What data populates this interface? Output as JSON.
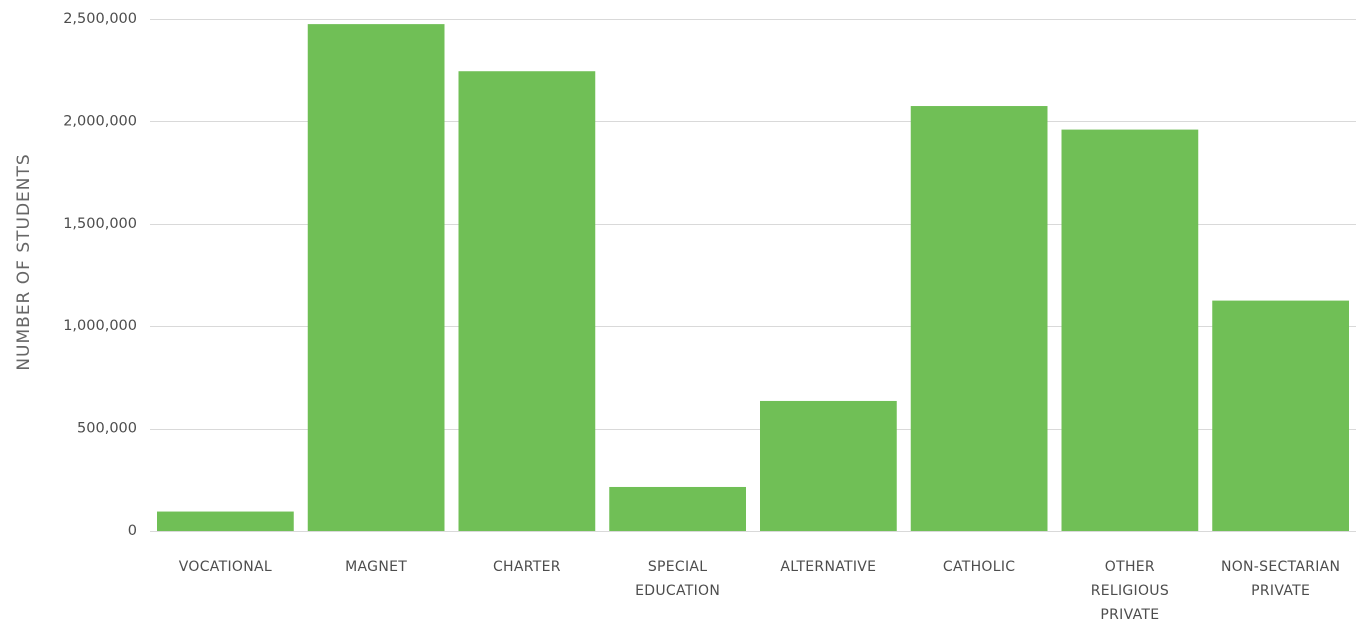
{
  "chart_data": {
    "type": "bar",
    "title": "",
    "xlabel": "",
    "ylabel": "NUMBER OF STUDENTS",
    "ylim": [
      0,
      2500000
    ],
    "yticks": [
      0,
      500000,
      1000000,
      1500000,
      2000000,
      2500000
    ],
    "ytick_labels": [
      "0",
      "500,000",
      "1,000,000",
      "1,500,000",
      "2,000,000",
      "2,500,000"
    ],
    "grid": true,
    "legend": "none",
    "categories": [
      [
        "VOCATIONAL"
      ],
      [
        "MAGNET"
      ],
      [
        "CHARTER"
      ],
      [
        "SPECIAL",
        "EDUCATION"
      ],
      [
        "ALTERNATIVE"
      ],
      [
        "CATHOLIC"
      ],
      [
        "OTHER",
        "RELIGIOUS",
        "PRIVATE"
      ],
      [
        "NON-SECTARIAN",
        "PRIVATE"
      ]
    ],
    "values": [
      95000,
      2475000,
      2245000,
      215000,
      635000,
      2075000,
      1960000,
      1125000
    ],
    "bar_color": "#70bf56"
  }
}
